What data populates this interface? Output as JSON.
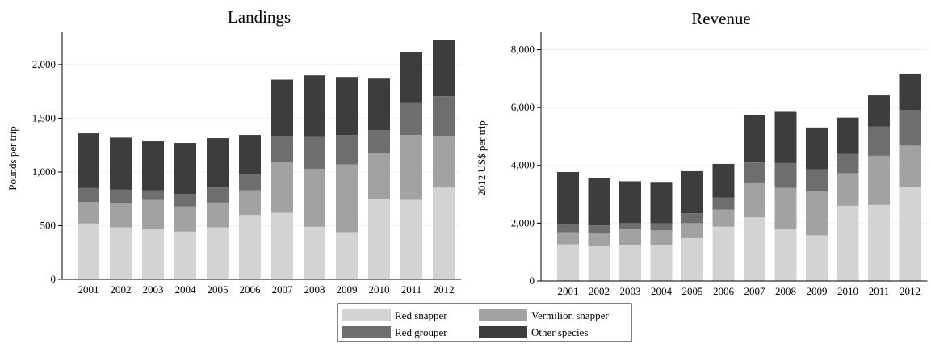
{
  "chart_data": [
    {
      "type": "bar",
      "stacked": true,
      "title": "Landings",
      "xlabel": "",
      "ylabel": "Pounds per trip",
      "ylim": [
        0,
        2300
      ],
      "yticks": [
        0,
        500,
        1000,
        1500,
        2000
      ],
      "ytick_labels": [
        "0",
        "500",
        "1,000",
        "1,500",
        "2,000"
      ],
      "categories": [
        "2001",
        "2002",
        "2003",
        "2004",
        "2005",
        "2006",
        "2007",
        "2008",
        "2009",
        "2010",
        "2011",
        "2012"
      ],
      "series": [
        {
          "name": "Red snapper",
          "values": [
            520,
            485,
            470,
            445,
            485,
            600,
            620,
            490,
            440,
            750,
            740,
            855
          ]
        },
        {
          "name": "Vermilion snapper",
          "values": [
            200,
            225,
            270,
            235,
            230,
            230,
            475,
            540,
            630,
            425,
            605,
            480
          ]
        },
        {
          "name": "Red grouper",
          "values": [
            130,
            125,
            90,
            115,
            140,
            145,
            235,
            295,
            275,
            215,
            305,
            370
          ]
        },
        {
          "name": "Other species",
          "values": [
            510,
            485,
            455,
            475,
            460,
            370,
            530,
            575,
            540,
            480,
            465,
            520
          ]
        }
      ],
      "grid": true
    },
    {
      "type": "bar",
      "stacked": true,
      "title": "Revenue",
      "xlabel": "",
      "ylabel": "2012  US$ per trip",
      "ylim": [
        0,
        8600
      ],
      "yticks": [
        0,
        2000,
        4000,
        6000,
        8000
      ],
      "ytick_labels": [
        "0",
        "2,000",
        "4,000",
        "6,000",
        "8,000"
      ],
      "categories": [
        "2001",
        "2002",
        "2003",
        "2004",
        "2005",
        "2006",
        "2007",
        "2008",
        "2009",
        "2010",
        "2011",
        "2012"
      ],
      "series": [
        {
          "name": "Red snapper",
          "values": [
            1270,
            1200,
            1230,
            1230,
            1480,
            1880,
            2200,
            1800,
            1580,
            2600,
            2630,
            3250
          ]
        },
        {
          "name": "Vermilion snapper",
          "values": [
            420,
            440,
            580,
            520,
            520,
            590,
            1180,
            1420,
            1520,
            1130,
            1700,
            1430
          ]
        },
        {
          "name": "Red grouper",
          "values": [
            280,
            280,
            190,
            240,
            340,
            420,
            720,
            860,
            760,
            660,
            1010,
            1230
          ]
        },
        {
          "name": "Other species",
          "values": [
            1800,
            1640,
            1450,
            1410,
            1460,
            1160,
            1650,
            1770,
            1450,
            1260,
            1080,
            1240
          ]
        }
      ],
      "grid": true
    }
  ],
  "legend": [
    {
      "label": "Red snapper",
      "color": "#d3d3d3"
    },
    {
      "label": "Vermilion snapper",
      "color": "#a2a2a2"
    },
    {
      "label": "Red grouper",
      "color": "#6e6e6e"
    },
    {
      "label": "Other species",
      "color": "#3d3d3d"
    }
  ],
  "colors": {
    "Red snapper": "#d3d3d3",
    "Vermilion snapper": "#a2a2a2",
    "Red grouper": "#6e6e6e",
    "Other species": "#3d3d3d",
    "grid": "#e8f2f4"
  }
}
